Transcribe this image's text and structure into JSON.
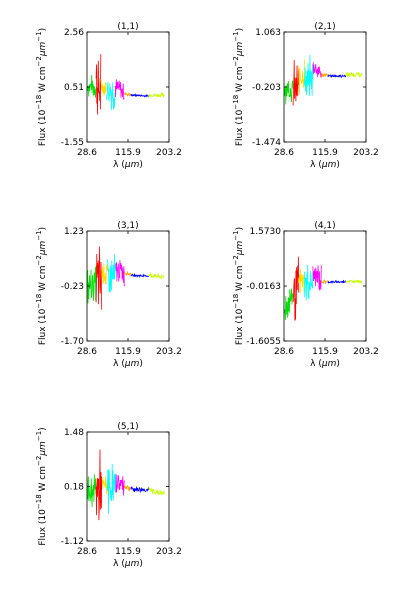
{
  "figure": {
    "ylabel_main": "Flux (10",
    "ylabel_exp1": "−18",
    "ylabel_mid": " W cm",
    "ylabel_exp2": "−2",
    "ylabel_mu": "μm",
    "ylabel_exp3": "−1",
    "ylabel_close": ")",
    "xlabel_prefix": "λ (",
    "xlabel_unit": "μm",
    "xlabel_suffix": ")"
  },
  "chart_data": [
    {
      "type": "line",
      "title": "(1,1)",
      "xlim": [
        28.6,
        203.2
      ],
      "ylim": [
        -1.55,
        2.56
      ],
      "xticks": [
        "28.6",
        "115.9",
        "203.2"
      ],
      "yticks": [
        "2.56",
        "0.51",
        "-1.55"
      ],
      "series": [
        {
          "color": "#00dd00",
          "x": [
            30,
            48
          ],
          "y": [
            0.55,
            0.5
          ],
          "noise": 0.5
        },
        {
          "color": "#ff0000",
          "x": [
            48,
            58
          ],
          "y": [
            0.6,
            0.4
          ],
          "noise": 1.9
        },
        {
          "color": "#ffdd00",
          "x": [
            58,
            70
          ],
          "y": [
            0.5,
            0.5
          ],
          "noise": 0.4
        },
        {
          "color": "#00ffff",
          "x": [
            70,
            88
          ],
          "y": [
            0.45,
            0.35
          ],
          "noise": 0.9
        },
        {
          "color": "#ff00ff",
          "x": [
            88,
            108
          ],
          "y": [
            0.5,
            0.3
          ],
          "noise": 0.5
        },
        {
          "color": "#ffa500",
          "x": [
            108,
            122
          ],
          "y": [
            0.25,
            0.22
          ],
          "noise": 0.1
        },
        {
          "color": "#0000ff",
          "x": [
            122,
            160
          ],
          "y": [
            0.2,
            0.17
          ],
          "noise": 0.05
        },
        {
          "color": "#c8ff00",
          "x": [
            160,
            193
          ],
          "y": [
            0.2,
            0.2
          ],
          "noise": 0.1
        }
      ]
    },
    {
      "type": "line",
      "title": "(2,1)",
      "xlim": [
        28.6,
        203.2
      ],
      "ylim": [
        -1.474,
        1.063
      ],
      "xticks": [
        "28.6",
        "115.9",
        "203.2"
      ],
      "yticks": [
        "1.063",
        "-0.203",
        "-1.474"
      ],
      "series": [
        {
          "color": "#00dd00",
          "x": [
            30,
            48
          ],
          "y": [
            -0.2,
            -0.3
          ],
          "noise": 0.4
        },
        {
          "color": "#ff0000",
          "x": [
            48,
            60
          ],
          "y": [
            -0.3,
            -0.2
          ],
          "noise": 0.8
        },
        {
          "color": "#ffdd00",
          "x": [
            60,
            72
          ],
          "y": [
            0.0,
            0.1
          ],
          "noise": 0.5
        },
        {
          "color": "#00ffff",
          "x": [
            72,
            90
          ],
          "y": [
            -0.1,
            0.0
          ],
          "noise": 0.6
        },
        {
          "color": "#ff00ff",
          "x": [
            90,
            108
          ],
          "y": [
            0.3,
            0.1
          ],
          "noise": 0.3
        },
        {
          "color": "#ffa500",
          "x": [
            108,
            122
          ],
          "y": [
            0.08,
            0.06
          ],
          "noise": 0.07
        },
        {
          "color": "#0000ff",
          "x": [
            122,
            160
          ],
          "y": [
            0.05,
            0.05
          ],
          "noise": 0.04
        },
        {
          "color": "#c8ff00",
          "x": [
            160,
            195
          ],
          "y": [
            0.08,
            0.08
          ],
          "noise": 0.07
        }
      ]
    },
    {
      "type": "line",
      "title": "(3,1)",
      "xlim": [
        28.6,
        203.2
      ],
      "ylim": [
        -1.7,
        1.23
      ],
      "xticks": [
        "28.6",
        "115.9",
        "203.2"
      ],
      "yticks": [
        "1.23",
        "-0.23",
        "-1.70"
      ],
      "series": [
        {
          "color": "#00dd00",
          "x": [
            30,
            48
          ],
          "y": [
            -0.3,
            -0.1
          ],
          "noise": 0.6
        },
        {
          "color": "#ff0000",
          "x": [
            48,
            60
          ],
          "y": [
            -0.2,
            -0.1
          ],
          "noise": 1.3
        },
        {
          "color": "#ffdd00",
          "x": [
            60,
            72
          ],
          "y": [
            0.1,
            0.1
          ],
          "noise": 0.5
        },
        {
          "color": "#00ffff",
          "x": [
            72,
            90
          ],
          "y": [
            -0.1,
            0.0
          ],
          "noise": 0.9
        },
        {
          "color": "#ff00ff",
          "x": [
            90,
            108
          ],
          "y": [
            0.2,
            0.1
          ],
          "noise": 0.4
        },
        {
          "color": "#ffa500",
          "x": [
            108,
            122
          ],
          "y": [
            0.12,
            0.08
          ],
          "noise": 0.08
        },
        {
          "color": "#0000ff",
          "x": [
            122,
            160
          ],
          "y": [
            0.05,
            0.03
          ],
          "noise": 0.04
        },
        {
          "color": "#c8ff00",
          "x": [
            160,
            193
          ],
          "y": [
            0.05,
            0.0
          ],
          "noise": 0.08
        }
      ]
    },
    {
      "type": "line",
      "title": "(4,1)",
      "xlim": [
        28.6,
        203.2
      ],
      "ylim": [
        -1.6055,
        1.573
      ],
      "xticks": [
        "28.6",
        "115.9",
        "203.2"
      ],
      "yticks": [
        "1.5730",
        "-0.0163",
        "-1.6055"
      ],
      "series": [
        {
          "color": "#00dd00",
          "x": [
            30,
            48
          ],
          "y": [
            -0.6,
            -0.3
          ],
          "noise": 0.6
        },
        {
          "color": "#ff0000",
          "x": [
            48,
            60
          ],
          "y": [
            -0.2,
            -0.1
          ],
          "noise": 1.1
        },
        {
          "color": "#ffdd00",
          "x": [
            60,
            72
          ],
          "y": [
            0.1,
            0.1
          ],
          "noise": 0.5
        },
        {
          "color": "#00ffff",
          "x": [
            72,
            90
          ],
          "y": [
            0.0,
            0.1
          ],
          "noise": 0.7
        },
        {
          "color": "#ff00ff",
          "x": [
            90,
            108
          ],
          "y": [
            0.3,
            0.2
          ],
          "noise": 0.5
        },
        {
          "color": "#ffa500",
          "x": [
            108,
            122
          ],
          "y": [
            0.12,
            0.1
          ],
          "noise": 0.08
        },
        {
          "color": "#0000ff",
          "x": [
            122,
            160
          ],
          "y": [
            0.1,
            0.1
          ],
          "noise": 0.04
        },
        {
          "color": "#c8ff00",
          "x": [
            160,
            195
          ],
          "y": [
            0.12,
            0.12
          ],
          "noise": 0.05
        }
      ]
    },
    {
      "type": "line",
      "title": "(5,1)",
      "xlim": [
        28.6,
        203.2
      ],
      "ylim": [
        -1.12,
        1.48
      ],
      "xticks": [
        "28.6",
        "115.9",
        "203.2"
      ],
      "yticks": [
        "1.48",
        "0.18",
        "-1.12"
      ],
      "series": [
        {
          "color": "#00dd00",
          "x": [
            30,
            48
          ],
          "y": [
            0.0,
            0.1
          ],
          "noise": 0.5
        },
        {
          "color": "#ff0000",
          "x": [
            48,
            60
          ],
          "y": [
            0.1,
            0.1
          ],
          "noise": 1.1
        },
        {
          "color": "#ffdd00",
          "x": [
            60,
            72
          ],
          "y": [
            0.2,
            0.2
          ],
          "noise": 0.3
        },
        {
          "color": "#00ffff",
          "x": [
            72,
            90
          ],
          "y": [
            0.15,
            0.15
          ],
          "noise": 0.7
        },
        {
          "color": "#ff00ff",
          "x": [
            90,
            108
          ],
          "y": [
            0.3,
            0.2
          ],
          "noise": 0.3
        },
        {
          "color": "#ffa500",
          "x": [
            108,
            122
          ],
          "y": [
            0.18,
            0.15
          ],
          "noise": 0.1
        },
        {
          "color": "#0000ff",
          "x": [
            122,
            160
          ],
          "y": [
            0.12,
            0.1
          ],
          "noise": 0.08
        },
        {
          "color": "#c8ff00",
          "x": [
            160,
            193
          ],
          "y": [
            0.1,
            0.0
          ],
          "noise": 0.1
        }
      ]
    }
  ]
}
